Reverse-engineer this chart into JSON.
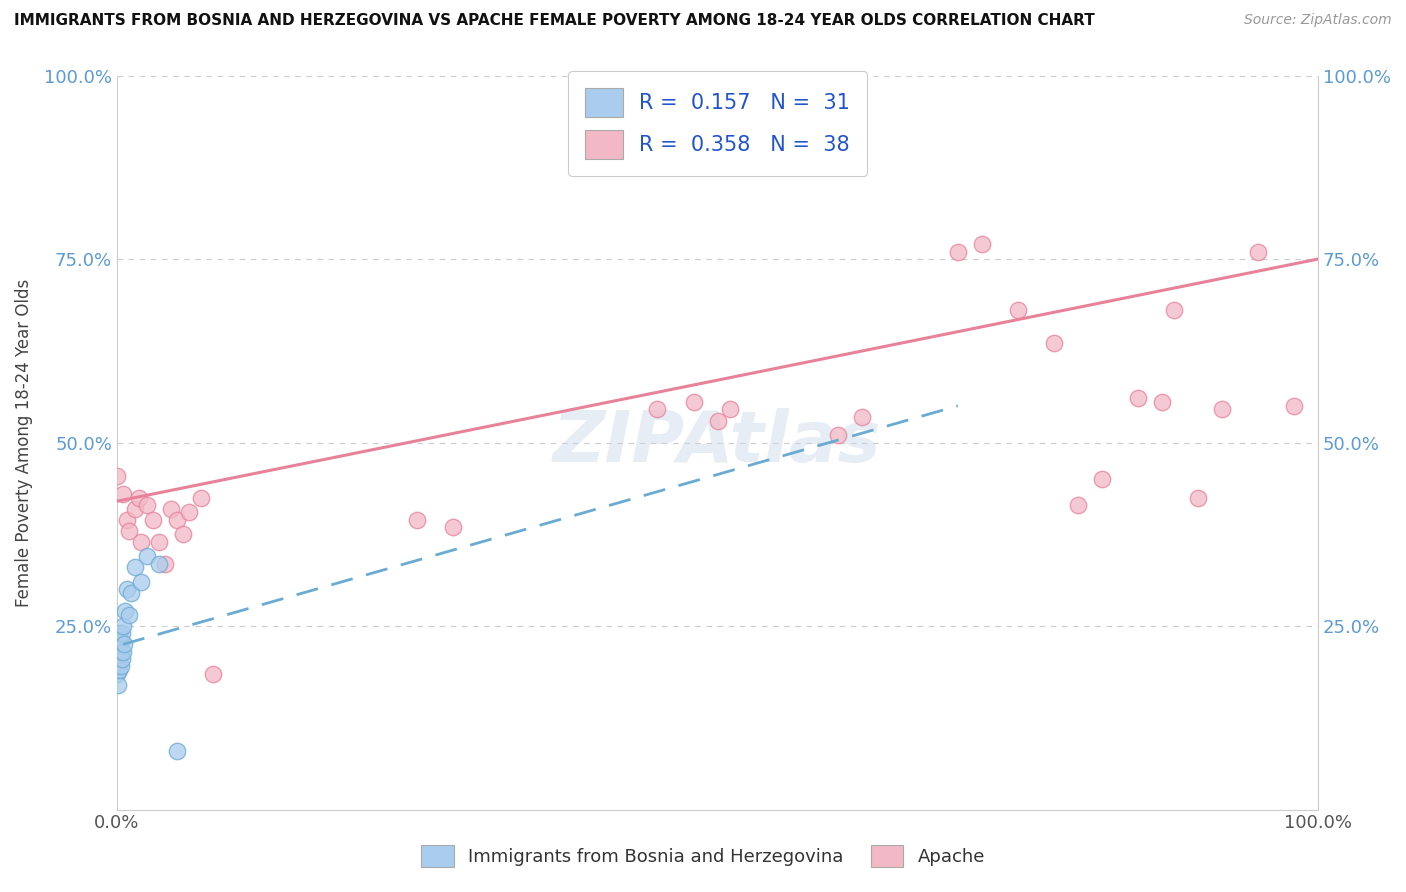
{
  "title": "IMMIGRANTS FROM BOSNIA AND HERZEGOVINA VS APACHE FEMALE POVERTY AMONG 18-24 YEAR OLDS CORRELATION CHART",
  "source": "Source: ZipAtlas.com",
  "ylabel": "Female Poverty Among 18-24 Year Olds",
  "legend_label1": "Immigrants from Bosnia and Herzegovina",
  "legend_label2": "Apache",
  "blue_color": "#6aabd2",
  "pink_color": "#e8829a",
  "blue_fill": "#aaccee",
  "pink_fill": "#f2b8c6",
  "grid_color": "#cccccc",
  "background_color": "#ffffff",
  "R_blue": 0.157,
  "N_blue": 31,
  "R_pink": 0.358,
  "N_pink": 38,
  "blue_x": [
    0.0,
    0.0,
    0.0,
    0.0,
    0.0,
    0.0,
    0.001,
    0.001,
    0.001,
    0.001,
    0.002,
    0.002,
    0.002,
    0.002,
    0.003,
    0.003,
    0.003,
    0.004,
    0.004,
    0.005,
    0.005,
    0.006,
    0.007,
    0.008,
    0.01,
    0.012,
    0.015,
    0.02,
    0.025,
    0.035,
    0.05
  ],
  "blue_y": [
    0.185,
    0.195,
    0.21,
    0.215,
    0.22,
    0.225,
    0.17,
    0.2,
    0.215,
    0.235,
    0.19,
    0.21,
    0.225,
    0.24,
    0.195,
    0.215,
    0.23,
    0.205,
    0.24,
    0.215,
    0.25,
    0.225,
    0.27,
    0.3,
    0.265,
    0.295,
    0.33,
    0.31,
    0.345,
    0.335,
    0.08
  ],
  "pink_x": [
    0.0,
    0.005,
    0.008,
    0.01,
    0.015,
    0.018,
    0.02,
    0.025,
    0.03,
    0.035,
    0.04,
    0.045,
    0.05,
    0.055,
    0.06,
    0.07,
    0.08,
    0.25,
    0.28,
    0.45,
    0.48,
    0.5,
    0.51,
    0.6,
    0.62,
    0.7,
    0.72,
    0.75,
    0.78,
    0.8,
    0.82,
    0.85,
    0.87,
    0.88,
    0.9,
    0.92,
    0.95,
    0.98
  ],
  "pink_y": [
    0.455,
    0.43,
    0.395,
    0.38,
    0.41,
    0.425,
    0.365,
    0.415,
    0.395,
    0.365,
    0.335,
    0.41,
    0.395,
    0.375,
    0.405,
    0.425,
    0.185,
    0.395,
    0.385,
    0.545,
    0.555,
    0.53,
    0.545,
    0.51,
    0.535,
    0.76,
    0.77,
    0.68,
    0.635,
    0.415,
    0.45,
    0.56,
    0.555,
    0.68,
    0.425,
    0.545,
    0.76,
    0.55
  ],
  "pink_line_x0": 0.0,
  "pink_line_y0": 0.42,
  "pink_line_x1": 1.0,
  "pink_line_y1": 0.75,
  "blue_line_x0": 0.005,
  "blue_line_y0": 0.225,
  "blue_line_x1": 0.7,
  "blue_line_y1": 0.55,
  "xlim": [
    0,
    1
  ],
  "ylim": [
    0,
    1
  ],
  "yticks": [
    0.0,
    0.25,
    0.5,
    0.75,
    1.0
  ],
  "yticklabels_left": [
    "",
    "25.0%",
    "50.0%",
    "75.0%",
    "100.0%"
  ],
  "yticklabels_right": [
    "",
    "25.0%",
    "50.0%",
    "75.0%",
    "100.0%"
  ],
  "xticks": [
    0.0,
    1.0
  ],
  "xticklabels": [
    "0.0%",
    "100.0%"
  ]
}
